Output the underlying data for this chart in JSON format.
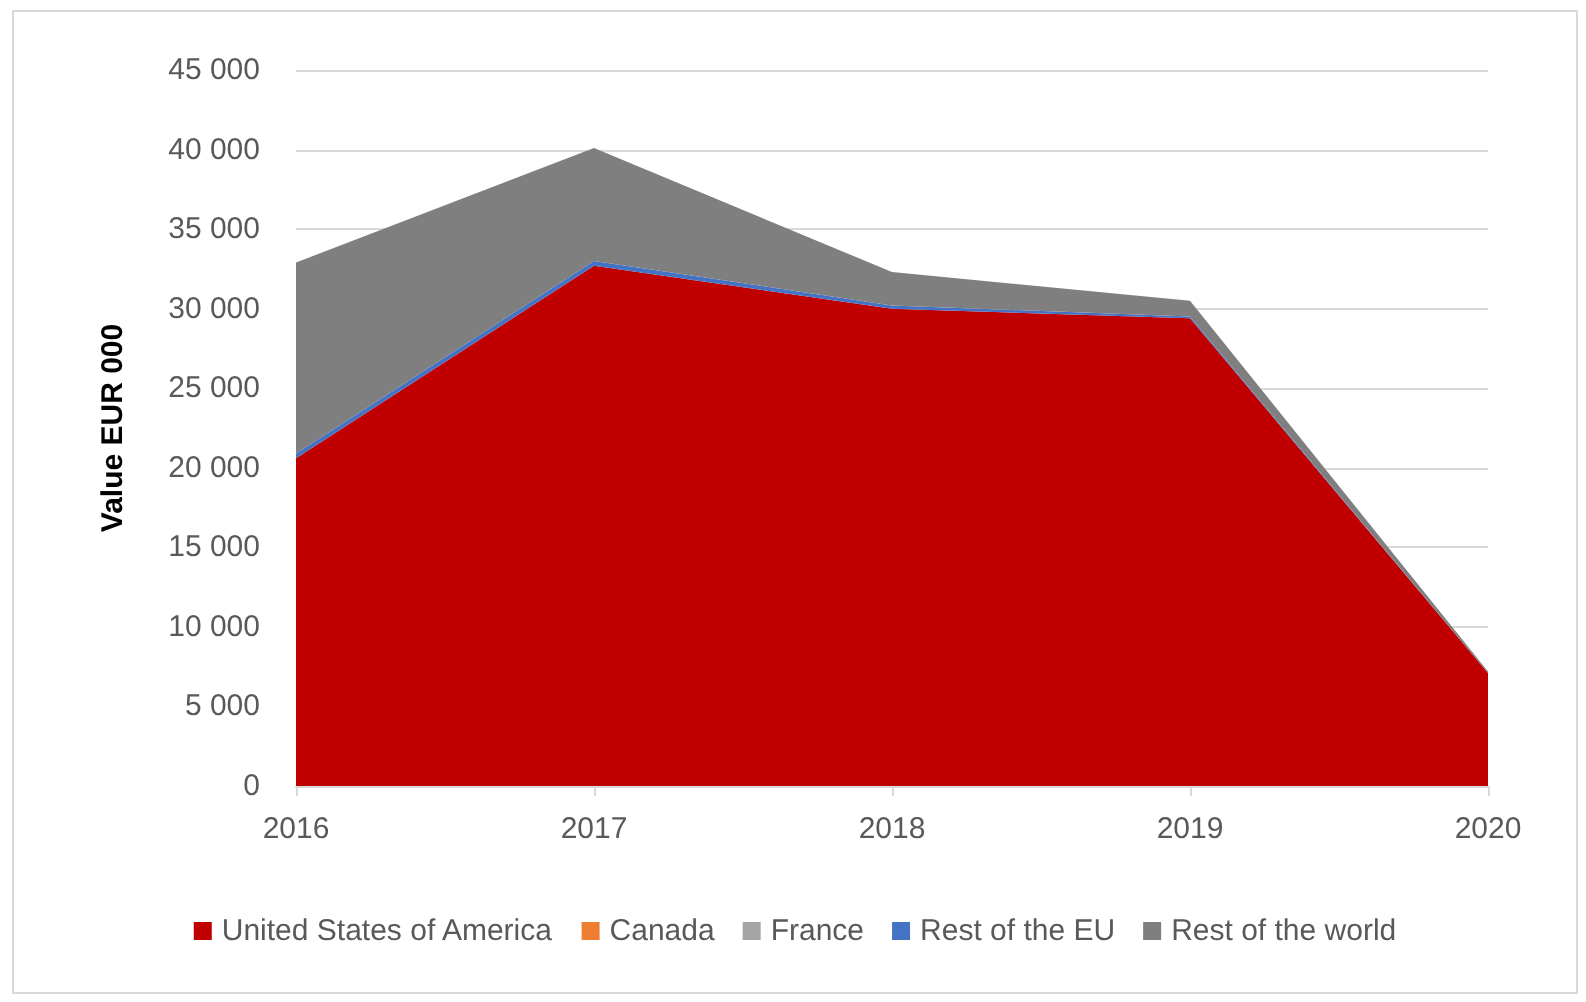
{
  "chart_data": {
    "type": "area",
    "stacked": true,
    "ylabel": "Value EUR 000",
    "categories": [
      "2016",
      "2017",
      "2018",
      "2019",
      "2020"
    ],
    "series": [
      {
        "name": "United States of America",
        "color": "#c00000",
        "values": [
          20600,
          32700,
          30000,
          29400,
          7100
        ]
      },
      {
        "name": "Canada",
        "color": "#ed7d31",
        "values": [
          null,
          null,
          null,
          null,
          null
        ]
      },
      {
        "name": "France",
        "color": "#a5a5a5",
        "values": [
          null,
          null,
          null,
          null,
          null
        ]
      },
      {
        "name": "Rest of the EU",
        "color": "#4472c4",
        "values": [
          300,
          300,
          200,
          100,
          0
        ]
      },
      {
        "name": "Rest of the world",
        "color": "#7f7f7f",
        "values": [
          12000,
          7100,
          2100,
          1000,
          100
        ]
      }
    ],
    "ylim": [
      0,
      45000
    ],
    "yticks": [
      {
        "value": 0,
        "label": "0"
      },
      {
        "value": 5000,
        "label": "5 000"
      },
      {
        "value": 10000,
        "label": "10 000"
      },
      {
        "value": 15000,
        "label": "15 000"
      },
      {
        "value": 20000,
        "label": "20 000"
      },
      {
        "value": 25000,
        "label": "25 000"
      },
      {
        "value": 30000,
        "label": "30 000"
      },
      {
        "value": 35000,
        "label": "35 000"
      },
      {
        "value": 40000,
        "label": "40 000"
      },
      {
        "value": 45000,
        "label": "45 000"
      }
    ],
    "grid": "y",
    "legend": "bottom"
  }
}
